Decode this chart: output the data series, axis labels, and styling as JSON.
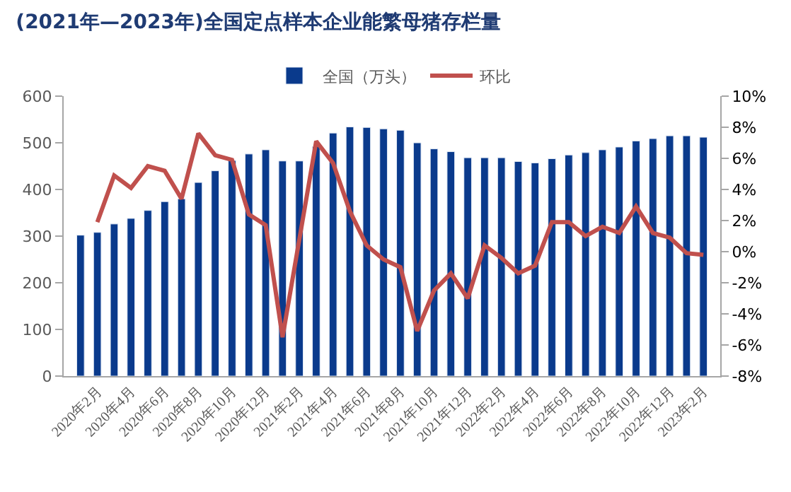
{
  "chart_data": {
    "type": "bar",
    "title": "(2021年—2023年)全国定点样本企业能繁母猪存栏量",
    "categories": [
      null,
      "2020年2月",
      null,
      "2020年4月",
      null,
      "2020年6月",
      null,
      "2020年8月",
      null,
      "2020年10月",
      null,
      "2020年12月",
      null,
      "2021年2月",
      null,
      "2021年4月",
      null,
      "2021年6月",
      null,
      "2021年8月",
      null,
      "2021年10月",
      null,
      "2021年12月",
      null,
      "2022年2月",
      null,
      "2022年4月",
      null,
      "2022年6月",
      null,
      "2022年8月",
      null,
      "2022年10月",
      null,
      "2022年12月",
      null,
      "2023年2月"
    ],
    "series": [
      {
        "name": "全国（万头）",
        "color": "#0a3a8c",
        "values": [
          302,
          308,
          326,
          338,
          355,
          374,
          380,
          415,
          440,
          462,
          476,
          485,
          461,
          461,
          492,
          521,
          534,
          533,
          530,
          527,
          500,
          487,
          481,
          468,
          468,
          468,
          460,
          457,
          466,
          474,
          479,
          485,
          491,
          504,
          509,
          515,
          515,
          512
        ]
      },
      {
        "name": "环比",
        "type": "line",
        "axis": "y2",
        "color": "#c0504d",
        "values": [
          null,
          1.9,
          4.9,
          4.1,
          5.5,
          5.2,
          3.4,
          7.6,
          6.2,
          5.9,
          2.4,
          1.7,
          -5.5,
          0.8,
          7.1,
          5.7,
          2.6,
          0.4,
          -0.5,
          -1.0,
          -5.1,
          -2.5,
          -1.4,
          -3.0,
          0.4,
          -0.4,
          -1.4,
          -0.9,
          1.9,
          1.9,
          1.0,
          1.6,
          1.2,
          2.9,
          1.2,
          0.9,
          -0.1,
          -0.2
        ]
      }
    ],
    "ylim": [
      0,
      600
    ],
    "yticks": [
      0,
      100,
      200,
      300,
      400,
      500,
      600
    ],
    "y2lim": [
      -8,
      10
    ],
    "y2ticks": [
      {
        "value": -8,
        "label": "-8%"
      },
      {
        "value": -6,
        "label": "-6%"
      },
      {
        "value": -4,
        "label": "-4%"
      },
      {
        "value": -2,
        "label": "-2%"
      },
      {
        "value": 0,
        "label": "0%"
      },
      {
        "value": 2,
        "label": "2%"
      },
      {
        "value": 4,
        "label": "4%"
      },
      {
        "value": 6,
        "label": "6%"
      },
      {
        "value": 8,
        "label": "8%"
      },
      {
        "value": 10,
        "label": "10%"
      }
    ],
    "legend": "top",
    "marker": "none",
    "line_style": "solid"
  }
}
